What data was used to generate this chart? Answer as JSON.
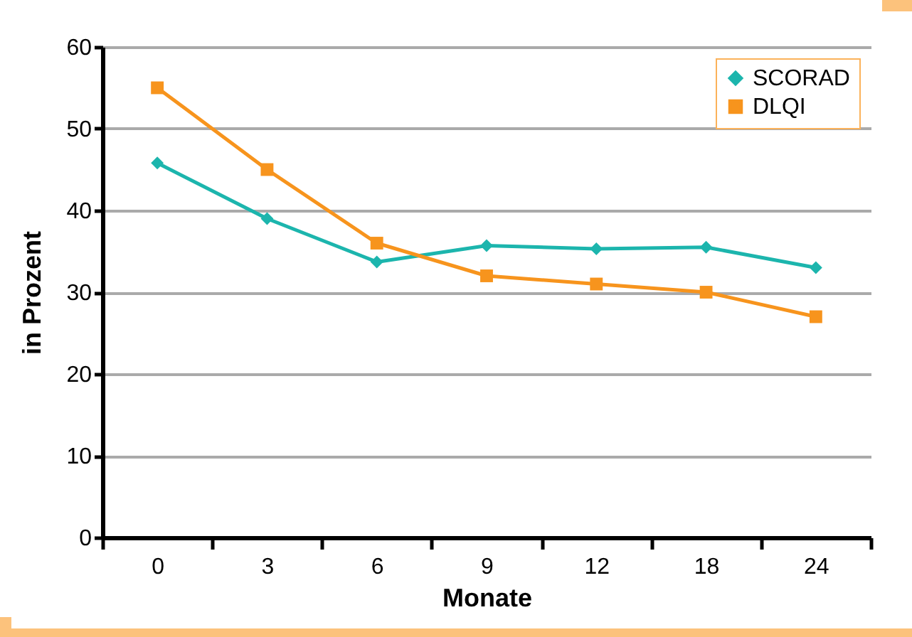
{
  "chart_data": {
    "type": "line",
    "xlabel": "Monate",
    "ylabel": "in Prozent",
    "categories": [
      "0",
      "3",
      "6",
      "9",
      "12",
      "18",
      "24"
    ],
    "series": [
      {
        "name": "SCORAD",
        "color": "#1cb5ad",
        "marker": "diamond",
        "values": [
          45.8,
          39,
          33.7,
          35.7,
          35.3,
          35.5,
          33
        ]
      },
      {
        "name": "DLQI",
        "color": "#f7941d",
        "marker": "square",
        "values": [
          55,
          45,
          36,
          32,
          31,
          30,
          27
        ]
      }
    ],
    "ylim": [
      0,
      60
    ],
    "yticks": [
      0,
      10,
      20,
      30,
      40,
      50,
      60
    ],
    "grid": "y",
    "legend": "top right",
    "line_style": "solid"
  }
}
